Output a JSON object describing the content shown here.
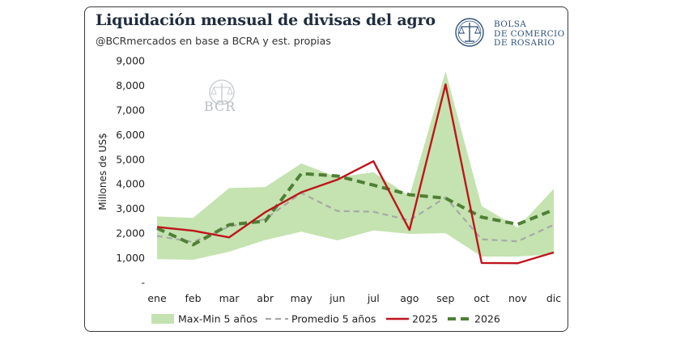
{
  "header": {
    "title": "Liquidación mensual de divisas del agro",
    "subtitle": "@BCRmercados en base a BCRA y est. propias"
  },
  "logo": {
    "line1": "BOLSA",
    "line2": "DE COMERCIO",
    "line3": "DE ROSARIO",
    "icon": "scales-of-justice-icon",
    "color": "#2d4f7a"
  },
  "watermark": {
    "text": "BCR",
    "icon": "scales-of-justice-icon"
  },
  "chart_data": {
    "type": "line",
    "categories": [
      "ene",
      "feb",
      "mar",
      "abr",
      "may",
      "jun",
      "jul",
      "ago",
      "sep",
      "oct",
      "nov",
      "dic"
    ],
    "ylabel": "Millones de US$",
    "ylim": [
      0,
      9000
    ],
    "yticks": [
      0,
      1000,
      2000,
      3000,
      4000,
      5000,
      6000,
      7000,
      8000,
      9000
    ],
    "ytick_labels": [
      "-",
      "1,000",
      "2,000",
      "3,000",
      "4,000",
      "5,000",
      "6,000",
      "7,000",
      "8,000",
      "9,000"
    ],
    "grid": false,
    "legend_position": "bottom",
    "band": {
      "name": "Max-Min 5 años",
      "color": "#c4e3b0",
      "min": [
        950,
        920,
        1250,
        1720,
        2060,
        1710,
        2110,
        1970,
        2000,
        1050,
        1050,
        1140
      ],
      "max": [
        2680,
        2620,
        3830,
        3870,
        4830,
        4270,
        4470,
        3510,
        8570,
        3100,
        2230,
        3800
      ]
    },
    "series": [
      {
        "name": "Promedio 5 años",
        "color": "#a8a8a8",
        "style": "dashed",
        "values": [
          1890,
          1640,
          2270,
          2570,
          3630,
          2900,
          2870,
          2520,
          3450,
          1750,
          1670,
          2340
        ]
      },
      {
        "name": "2025",
        "color": "#c0141c",
        "style": "solid",
        "values": [
          2250,
          2100,
          1830,
          2850,
          3660,
          4170,
          4920,
          2130,
          8040,
          790,
          780,
          1220
        ]
      },
      {
        "name": "2026",
        "color": "#4f7f35",
        "style": "dashed-bold",
        "values": [
          2200,
          1530,
          2340,
          2490,
          4420,
          4320,
          3950,
          3560,
          3420,
          2650,
          2360,
          2950
        ]
      }
    ]
  }
}
